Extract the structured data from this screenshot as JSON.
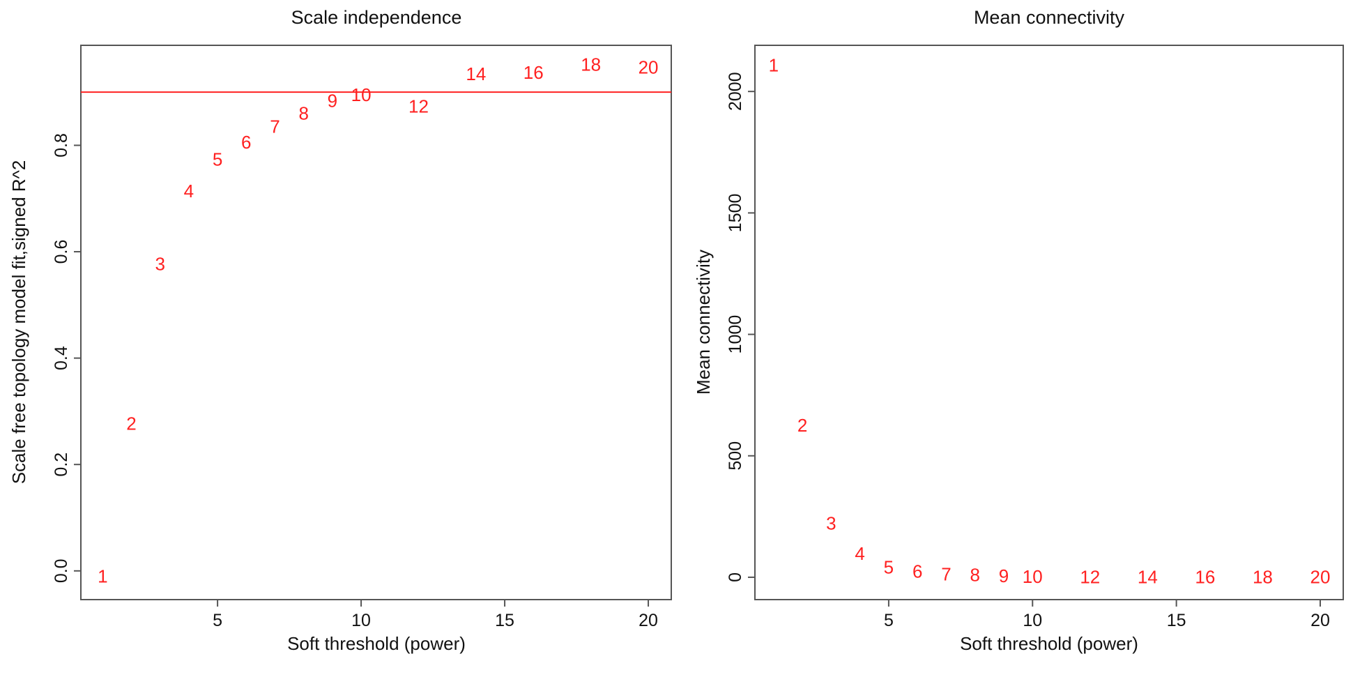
{
  "chart_data": [
    {
      "type": "scatter",
      "title": "Scale independence",
      "xlabel": "Soft threshold (power)",
      "ylabel": "Scale free topology model fit,signed R^2",
      "x": [
        1,
        2,
        3,
        4,
        5,
        6,
        7,
        8,
        9,
        10,
        12,
        14,
        16,
        18,
        20
      ],
      "y": [
        -0.01,
        0.277,
        0.577,
        0.714,
        0.774,
        0.806,
        0.835,
        0.86,
        0.884,
        0.895,
        0.873,
        0.934,
        0.937,
        0.952,
        0.947
      ],
      "point_labels": [
        "1",
        "2",
        "3",
        "4",
        "5",
        "6",
        "7",
        "8",
        "9",
        "10",
        "12",
        "14",
        "16",
        "18",
        "20"
      ],
      "xlim": [
        0.24,
        20.8
      ],
      "ylim": [
        -0.054,
        0.988
      ],
      "xticks": [
        5,
        10,
        15,
        20
      ],
      "xtick_labels": [
        "5",
        "10",
        "15",
        "20"
      ],
      "yticks": [
        0,
        0.2,
        0.4,
        0.6,
        0.8
      ],
      "ytick_labels": [
        "0.0",
        "0.2",
        "0.4",
        "0.6",
        "0.8"
      ],
      "hline": 0.9,
      "grid": false,
      "color": "#ff2020"
    },
    {
      "type": "scatter",
      "title": "Mean connectivity",
      "xlabel": "Soft threshold (power)",
      "ylabel": "Mean connectivity",
      "x": [
        1,
        2,
        3,
        4,
        5,
        6,
        7,
        8,
        9,
        10,
        12,
        14,
        16,
        18,
        20
      ],
      "y": [
        2108,
        625,
        223,
        98,
        42,
        24,
        13,
        10,
        6,
        3,
        2,
        1,
        1,
        1,
        1
      ],
      "point_labels": [
        "1",
        "2",
        "3",
        "4",
        "5",
        "6",
        "7",
        "8",
        "9",
        "10",
        "12",
        "14",
        "16",
        "18",
        "20"
      ],
      "xlim": [
        0.35,
        20.8
      ],
      "ylim": [
        -92,
        2190
      ],
      "xticks": [
        5,
        10,
        15,
        20
      ],
      "xtick_labels": [
        "5",
        "10",
        "15",
        "20"
      ],
      "yticks": [
        0,
        500,
        1000,
        1500,
        2000
      ],
      "ytick_labels": [
        "0",
        "500",
        "1000",
        "1500",
        "2000"
      ],
      "grid": false,
      "color": "#ff2020"
    }
  ]
}
